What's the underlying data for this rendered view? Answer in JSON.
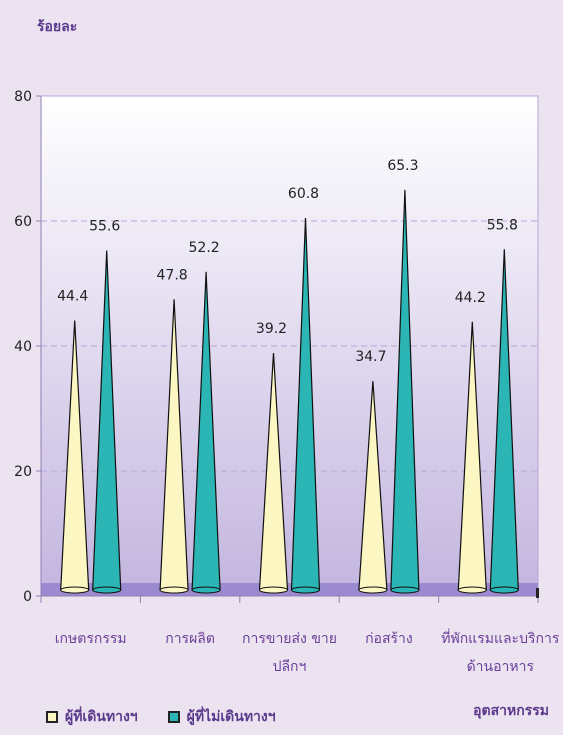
{
  "chart_data": {
    "type": "bar",
    "ylabel": "ร้อยละ",
    "xlabel": "อุตสาหกรรม",
    "ylim": [
      0,
      80
    ],
    "yticks": [
      0,
      20,
      40,
      60,
      80
    ],
    "categories": [
      "เกษตรกรรม",
      "การผลิต",
      "การขายส่ง ขายปลีกฯ",
      "ก่อสร้าง",
      "ที่พักแรมและบริการ ด้านอาหาร"
    ],
    "series": [
      {
        "name": "ผู้ที่เดินทางฯ",
        "values": [
          44.4,
          47.8,
          39.2,
          34.7,
          44.2
        ],
        "color": "#fbf6c2"
      },
      {
        "name": "ผู้ที่ไม่เดินทางฯ",
        "values": [
          55.6,
          52.2,
          60.8,
          65.3,
          55.8
        ],
        "color": "#2bb5b5"
      }
    ],
    "legend_position": "bottom-left",
    "grid": true
  }
}
